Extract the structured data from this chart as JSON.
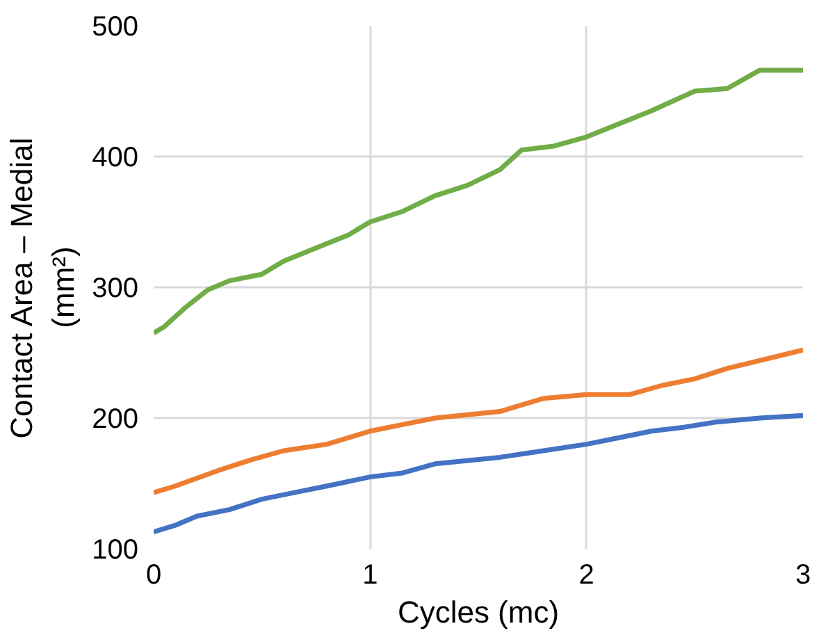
{
  "chart_data": {
    "type": "line",
    "xlabel": "Cycles (mc)",
    "ylabel": "Contact Area – Medial (mm²)",
    "xlim": [
      0,
      3
    ],
    "ylim": [
      100,
      500
    ],
    "xticks": [
      0,
      1,
      2,
      3
    ],
    "yticks": [
      100,
      200,
      300,
      400,
      500
    ],
    "grid": true,
    "marker": "none",
    "line_style": "solid",
    "series": [
      {
        "color": "#4472c4",
        "x": [
          0,
          0.1,
          0.2,
          0.35,
          0.5,
          0.65,
          0.8,
          1,
          1.15,
          1.3,
          1.6,
          1.8,
          2,
          2.15,
          2.3,
          2.45,
          2.6,
          2.8,
          3
        ],
        "values": [
          113,
          118,
          125,
          130,
          138,
          143,
          148,
          155,
          158,
          165,
          170,
          175,
          180,
          185,
          190,
          193,
          197,
          200,
          202
        ]
      },
      {
        "color": "#ed7d31",
        "x": [
          0,
          0.1,
          0.3,
          0.45,
          0.6,
          0.8,
          1,
          1.15,
          1.3,
          1.6,
          1.7,
          1.8,
          2,
          2.2,
          2.35,
          2.5,
          2.65,
          2.75,
          2.9,
          3
        ],
        "values": [
          143,
          148,
          160,
          168,
          175,
          180,
          190,
          195,
          200,
          205,
          210,
          215,
          218,
          218,
          225,
          230,
          238,
          242,
          248,
          252
        ]
      },
      {
        "color": "#70ad47",
        "x": [
          0,
          0.05,
          0.15,
          0.25,
          0.35,
          0.5,
          0.6,
          0.75,
          0.9,
          1,
          1.15,
          1.3,
          1.45,
          1.6,
          1.7,
          1.85,
          2,
          2.15,
          2.3,
          2.5,
          2.65,
          2.8,
          3
        ],
        "values": [
          265,
          270,
          285,
          298,
          305,
          310,
          320,
          330,
          340,
          350,
          358,
          370,
          378,
          390,
          405,
          408,
          415,
          425,
          435,
          450,
          452,
          466,
          466
        ]
      }
    ]
  }
}
